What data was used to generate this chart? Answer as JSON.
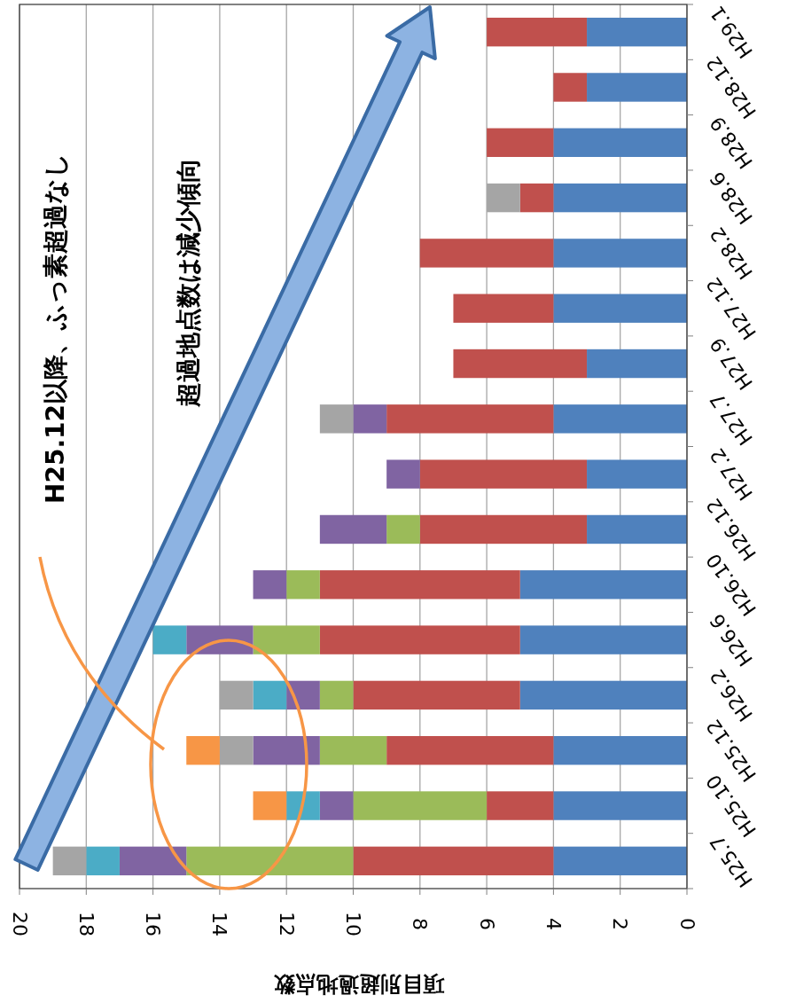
{
  "chart_data": {
    "type": "bar",
    "orientation": "horizontal",
    "stacked": true,
    "grid": "x",
    "xlabel": "項目別超過地点数",
    "annotations": [
      "H25.12以降、ふっ素超過なし",
      "超過地点数は減少傾向"
    ],
    "categories": [
      "H29.1",
      "H28.12",
      "H28.9",
      "H28.6",
      "H28.2",
      "H27.12",
      "H27.9",
      "H27.7",
      "H27.2",
      "H26.12",
      "H26.10",
      "H26.6",
      "H26.2",
      "H25.12",
      "H25.10",
      "H25.7"
    ],
    "xlim": [
      20,
      0
    ],
    "xticks": [
      0,
      2,
      4,
      6,
      8,
      10,
      12,
      14,
      16,
      18,
      20
    ],
    "series": [
      {
        "color": "#4f81bd",
        "values": [
          3,
          3,
          4,
          4,
          4,
          4,
          3,
          4,
          3,
          3,
          5,
          5,
          5,
          4,
          4,
          4
        ]
      },
      {
        "color": "#c0504d",
        "values": [
          3,
          1,
          2,
          1,
          4,
          3,
          4,
          5,
          5,
          5,
          6,
          6,
          5,
          5,
          2,
          6
        ]
      },
      {
        "color": "#9bbb59",
        "values": [
          0,
          0,
          0,
          0,
          0,
          0,
          0,
          0,
          0,
          1,
          1,
          2,
          1,
          2,
          4,
          5
        ]
      },
      {
        "color": "#8064a2",
        "values": [
          0,
          0,
          0,
          0,
          0,
          0,
          0,
          1,
          1,
          2,
          1,
          2,
          1,
          2,
          1,
          2
        ]
      },
      {
        "color": "#4bacc6",
        "values": [
          0,
          0,
          0,
          0,
          0,
          0,
          0,
          0,
          0,
          0,
          0,
          1,
          1,
          0,
          1,
          1
        ]
      },
      {
        "color": "#a5a5a5",
        "values": [
          0,
          0,
          0,
          1,
          0,
          0,
          0,
          1,
          0,
          0,
          0,
          0,
          1,
          1,
          0,
          1
        ]
      },
      {
        "color": "#f79646",
        "values": [
          0,
          0,
          0,
          0,
          0,
          0,
          0,
          0,
          0,
          0,
          0,
          0,
          0,
          1,
          1,
          0
        ]
      }
    ]
  }
}
